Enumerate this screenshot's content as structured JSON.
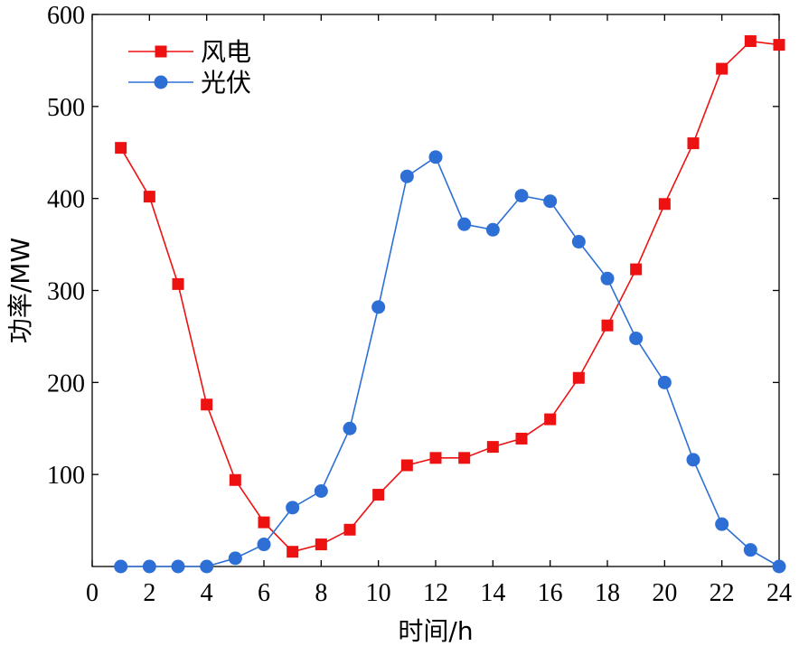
{
  "chart_data": {
    "type": "line",
    "title": "",
    "xlabel": "时间/h",
    "ylabel": "功率/MW",
    "xlim": [
      0,
      24
    ],
    "ylim": [
      0,
      600
    ],
    "xticks": [
      0,
      2,
      4,
      6,
      8,
      10,
      12,
      14,
      16,
      18,
      20,
      22,
      24
    ],
    "yticks": [
      100,
      200,
      300,
      400,
      500,
      600
    ],
    "grid": false,
    "legend_position": "top-left",
    "x": [
      1,
      2,
      3,
      4,
      5,
      6,
      7,
      8,
      9,
      10,
      11,
      12,
      13,
      14,
      15,
      16,
      17,
      18,
      19,
      20,
      21,
      22,
      23,
      24
    ],
    "series": [
      {
        "name": "风电",
        "color": "#ee1111",
        "marker": "square",
        "values": [
          455,
          402,
          307,
          176,
          94,
          48,
          16,
          24,
          40,
          78,
          110,
          118,
          118,
          130,
          139,
          160,
          205,
          262,
          323,
          394,
          460,
          541,
          571,
          567
        ]
      },
      {
        "name": "光伏",
        "color": "#2e6fd6",
        "marker": "circle",
        "values": [
          0,
          0,
          0,
          0,
          9,
          24,
          64,
          82,
          150,
          282,
          424,
          445,
          372,
          366,
          403,
          397,
          353,
          313,
          248,
          200,
          116,
          46,
          18,
          0
        ]
      }
    ]
  }
}
